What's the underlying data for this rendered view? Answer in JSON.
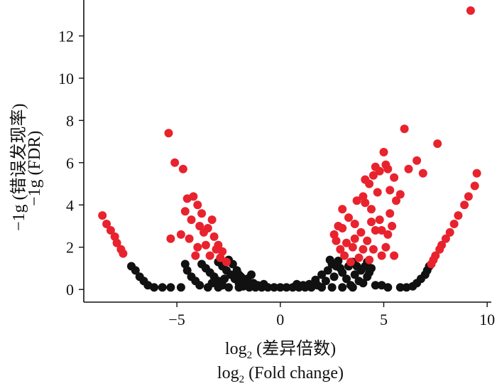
{
  "chart_data": {
    "type": "scatter",
    "title": "",
    "xlabel_lines": {
      "log": "log",
      "sub": "2",
      "cn": " (差异倍数)",
      "en": " (Fold change)"
    },
    "ylabel_lines": {
      "cn": "−1g (错误发现率)",
      "en": "−1g (FDR)"
    },
    "xlim": [
      -9.5,
      10.2
    ],
    "ylim": [
      -0.6,
      13.7
    ],
    "x_ticks": [
      {
        "value": -5,
        "label": "−5"
      },
      {
        "value": 0,
        "label": "0"
      },
      {
        "value": 5,
        "label": "5"
      },
      {
        "value": 10,
        "label": "10"
      }
    ],
    "y_ticks": [
      {
        "value": 0,
        "label": "0"
      },
      {
        "value": 2,
        "label": "2"
      },
      {
        "value": 4,
        "label": "4"
      },
      {
        "value": 6,
        "label": "6"
      },
      {
        "value": 8,
        "label": "8"
      },
      {
        "value": 10,
        "label": "10"
      },
      {
        "value": 12,
        "label": "12"
      }
    ],
    "grid": false,
    "colors": {
      "significant": "#e8232d",
      "not_significant": "#111111"
    },
    "series": [
      {
        "color": "#e8232d",
        "points": [
          [
            9.2,
            13.2
          ],
          [
            9.5,
            5.5
          ],
          [
            7.6,
            6.9
          ],
          [
            6.0,
            7.6
          ],
          [
            6.2,
            5.7
          ],
          [
            6.6,
            6.1
          ],
          [
            6.9,
            5.5
          ],
          [
            5.0,
            6.5
          ],
          [
            5.1,
            5.9
          ],
          [
            5.2,
            5.7
          ],
          [
            5.5,
            5.3
          ],
          [
            5.3,
            4.7
          ],
          [
            5.6,
            4.2
          ],
          [
            5.8,
            4.5
          ],
          [
            4.6,
            5.8
          ],
          [
            4.5,
            5.4
          ],
          [
            4.3,
            5.0
          ],
          [
            4.7,
            4.6
          ],
          [
            4.1,
            4.1
          ],
          [
            4.4,
            3.8
          ],
          [
            4.8,
            3.3
          ],
          [
            4.9,
            2.8
          ],
          [
            5.4,
            3.0
          ],
          [
            5.2,
            2.6
          ],
          [
            5.1,
            2.0
          ],
          [
            5.5,
            1.6
          ],
          [
            4.5,
            1.9
          ],
          [
            4.2,
            2.3
          ],
          [
            3.9,
            2.7
          ],
          [
            3.6,
            3.1
          ],
          [
            3.3,
            3.4
          ],
          [
            3.0,
            3.8
          ],
          [
            2.8,
            3.0
          ],
          [
            2.6,
            2.6
          ],
          [
            3.2,
            2.2
          ],
          [
            3.5,
            2.0
          ],
          [
            3.8,
            1.5
          ],
          [
            4.0,
            1.9
          ],
          [
            2.9,
            1.9
          ],
          [
            2.7,
            2.3
          ],
          [
            3.1,
            1.6
          ],
          [
            3.4,
            1.3
          ],
          [
            4.3,
            1.4
          ],
          [
            4.6,
            2.8
          ],
          [
            3.7,
            4.2
          ],
          [
            4.0,
            4.4
          ],
          [
            4.4,
            3.2
          ],
          [
            4.1,
            5.2
          ],
          [
            4.8,
            5.6
          ],
          [
            5.3,
            3.6
          ],
          [
            4.9,
            1.6
          ],
          [
            3.0,
            2.9
          ],
          [
            3.6,
            2.4
          ],
          [
            9.4,
            4.9
          ],
          [
            9.1,
            4.4
          ],
          [
            8.9,
            4.0
          ],
          [
            8.6,
            3.5
          ],
          [
            8.4,
            3.1
          ],
          [
            8.2,
            2.7
          ],
          [
            8.0,
            2.4
          ],
          [
            7.8,
            2.1
          ],
          [
            7.7,
            1.9
          ],
          [
            7.5,
            1.6
          ],
          [
            7.4,
            1.4
          ],
          [
            7.3,
            1.2
          ],
          [
            -5.4,
            7.4
          ],
          [
            -5.1,
            6.0
          ],
          [
            -4.7,
            5.7
          ],
          [
            -4.5,
            4.3
          ],
          [
            -4.2,
            4.4
          ],
          [
            -4.0,
            4.0
          ],
          [
            -3.8,
            3.6
          ],
          [
            -4.3,
            3.3
          ],
          [
            -3.9,
            3.0
          ],
          [
            -3.7,
            2.7
          ],
          [
            -3.5,
            2.9
          ],
          [
            -3.2,
            2.5
          ],
          [
            -3.0,
            2.1
          ],
          [
            -2.8,
            1.8
          ],
          [
            -3.4,
            1.6
          ],
          [
            -3.6,
            2.1
          ],
          [
            -4.0,
            2.0
          ],
          [
            -4.4,
            2.4
          ],
          [
            -3.3,
            3.3
          ],
          [
            -2.9,
            1.5
          ],
          [
            -2.6,
            1.3
          ],
          [
            -5.3,
            2.4
          ],
          [
            -4.8,
            2.6
          ],
          [
            -4.6,
            3.7
          ],
          [
            -4.1,
            1.6
          ],
          [
            -3.1,
            1.9
          ],
          [
            -8.6,
            3.5
          ],
          [
            -8.4,
            3.1
          ],
          [
            -8.2,
            2.8
          ],
          [
            -8.0,
            2.5
          ],
          [
            -7.9,
            2.2
          ],
          [
            -7.7,
            1.9
          ],
          [
            -7.6,
            1.7
          ]
        ]
      },
      {
        "color": "#111111",
        "points": [
          [
            -7.2,
            1.1
          ],
          [
            -7.0,
            0.9
          ],
          [
            -6.8,
            0.6
          ],
          [
            -6.6,
            0.4
          ],
          [
            -6.4,
            0.2
          ],
          [
            -6.1,
            0.1
          ],
          [
            -5.7,
            0.1
          ],
          [
            -5.3,
            0.1
          ],
          [
            -4.8,
            0.1
          ],
          [
            -4.6,
            1.2
          ],
          [
            -4.5,
            0.9
          ],
          [
            -4.3,
            0.6
          ],
          [
            -4.1,
            0.4
          ],
          [
            -3.9,
            0.2
          ],
          [
            -3.8,
            1.2
          ],
          [
            -3.6,
            1.0
          ],
          [
            -3.4,
            0.8
          ],
          [
            -3.2,
            0.6
          ],
          [
            -3.0,
            0.4
          ],
          [
            -2.8,
            0.2
          ],
          [
            -3.0,
            1.3
          ],
          [
            -2.8,
            1.1
          ],
          [
            -2.6,
            0.9
          ],
          [
            -2.4,
            0.7
          ],
          [
            -2.2,
            0.5
          ],
          [
            -2.0,
            0.3
          ],
          [
            -1.8,
            0.15
          ],
          [
            -2.5,
            1.4
          ],
          [
            -2.3,
            1.2
          ],
          [
            -2.1,
            0.9
          ],
          [
            -1.9,
            0.6
          ],
          [
            -1.7,
            0.35
          ],
          [
            -1.5,
            0.15
          ],
          [
            -3.5,
            0.1
          ],
          [
            -3.0,
            0.1
          ],
          [
            -2.5,
            0.1
          ],
          [
            -2.0,
            0.1
          ],
          [
            -1.5,
            0.1
          ],
          [
            -1.2,
            0.1
          ],
          [
            -0.9,
            0.1
          ],
          [
            -0.6,
            0.1
          ],
          [
            -0.3,
            0.1
          ],
          [
            0.0,
            0.1
          ],
          [
            0.3,
            0.1
          ],
          [
            0.6,
            0.1
          ],
          [
            0.9,
            0.1
          ],
          [
            1.2,
            0.1
          ],
          [
            1.5,
            0.1
          ],
          [
            2.0,
            0.1
          ],
          [
            2.5,
            0.1
          ],
          [
            3.0,
            0.1
          ],
          [
            3.5,
            0.1
          ],
          [
            -3.3,
            0.3
          ],
          [
            -2.7,
            0.5
          ],
          [
            -2.0,
            0.7
          ],
          [
            -1.6,
            0.5
          ],
          [
            -1.3,
            0.3
          ],
          [
            -1.1,
            0.2
          ],
          [
            1.4,
            0.25
          ],
          [
            1.7,
            0.45
          ],
          [
            2.0,
            0.7
          ],
          [
            2.3,
            0.9
          ],
          [
            2.5,
            1.2
          ],
          [
            2.7,
            1.1
          ],
          [
            2.9,
            1.0
          ],
          [
            1.8,
            0.2
          ],
          [
            2.2,
            0.4
          ],
          [
            2.6,
            0.6
          ],
          [
            3.0,
            0.8
          ],
          [
            3.3,
            1.1
          ],
          [
            3.5,
            1.3
          ],
          [
            3.2,
            0.5
          ],
          [
            3.6,
            0.7
          ],
          [
            3.9,
            0.9
          ],
          [
            4.1,
            1.1
          ],
          [
            4.3,
            0.8
          ],
          [
            3.8,
            0.4
          ],
          [
            4.0,
            0.3
          ],
          [
            4.4,
            1.0
          ],
          [
            4.6,
            0.2
          ],
          [
            4.9,
            0.2
          ],
          [
            5.2,
            0.1
          ],
          [
            4.2,
            0.6
          ],
          [
            3.4,
            0.2
          ],
          [
            5.8,
            0.1
          ],
          [
            6.1,
            0.1
          ],
          [
            6.4,
            0.15
          ],
          [
            6.6,
            0.3
          ],
          [
            6.8,
            0.5
          ],
          [
            7.0,
            0.7
          ],
          [
            7.1,
            0.9
          ],
          [
            7.2,
            1.1
          ],
          [
            3.7,
            1.1
          ],
          [
            4.2,
            1.3
          ],
          [
            2.4,
            1.4
          ],
          [
            2.8,
            1.35
          ],
          [
            -1.4,
            0.7
          ],
          [
            -0.8,
            0.25
          ],
          [
            0.8,
            0.25
          ],
          [
            1.1,
            0.2
          ]
        ]
      }
    ]
  }
}
